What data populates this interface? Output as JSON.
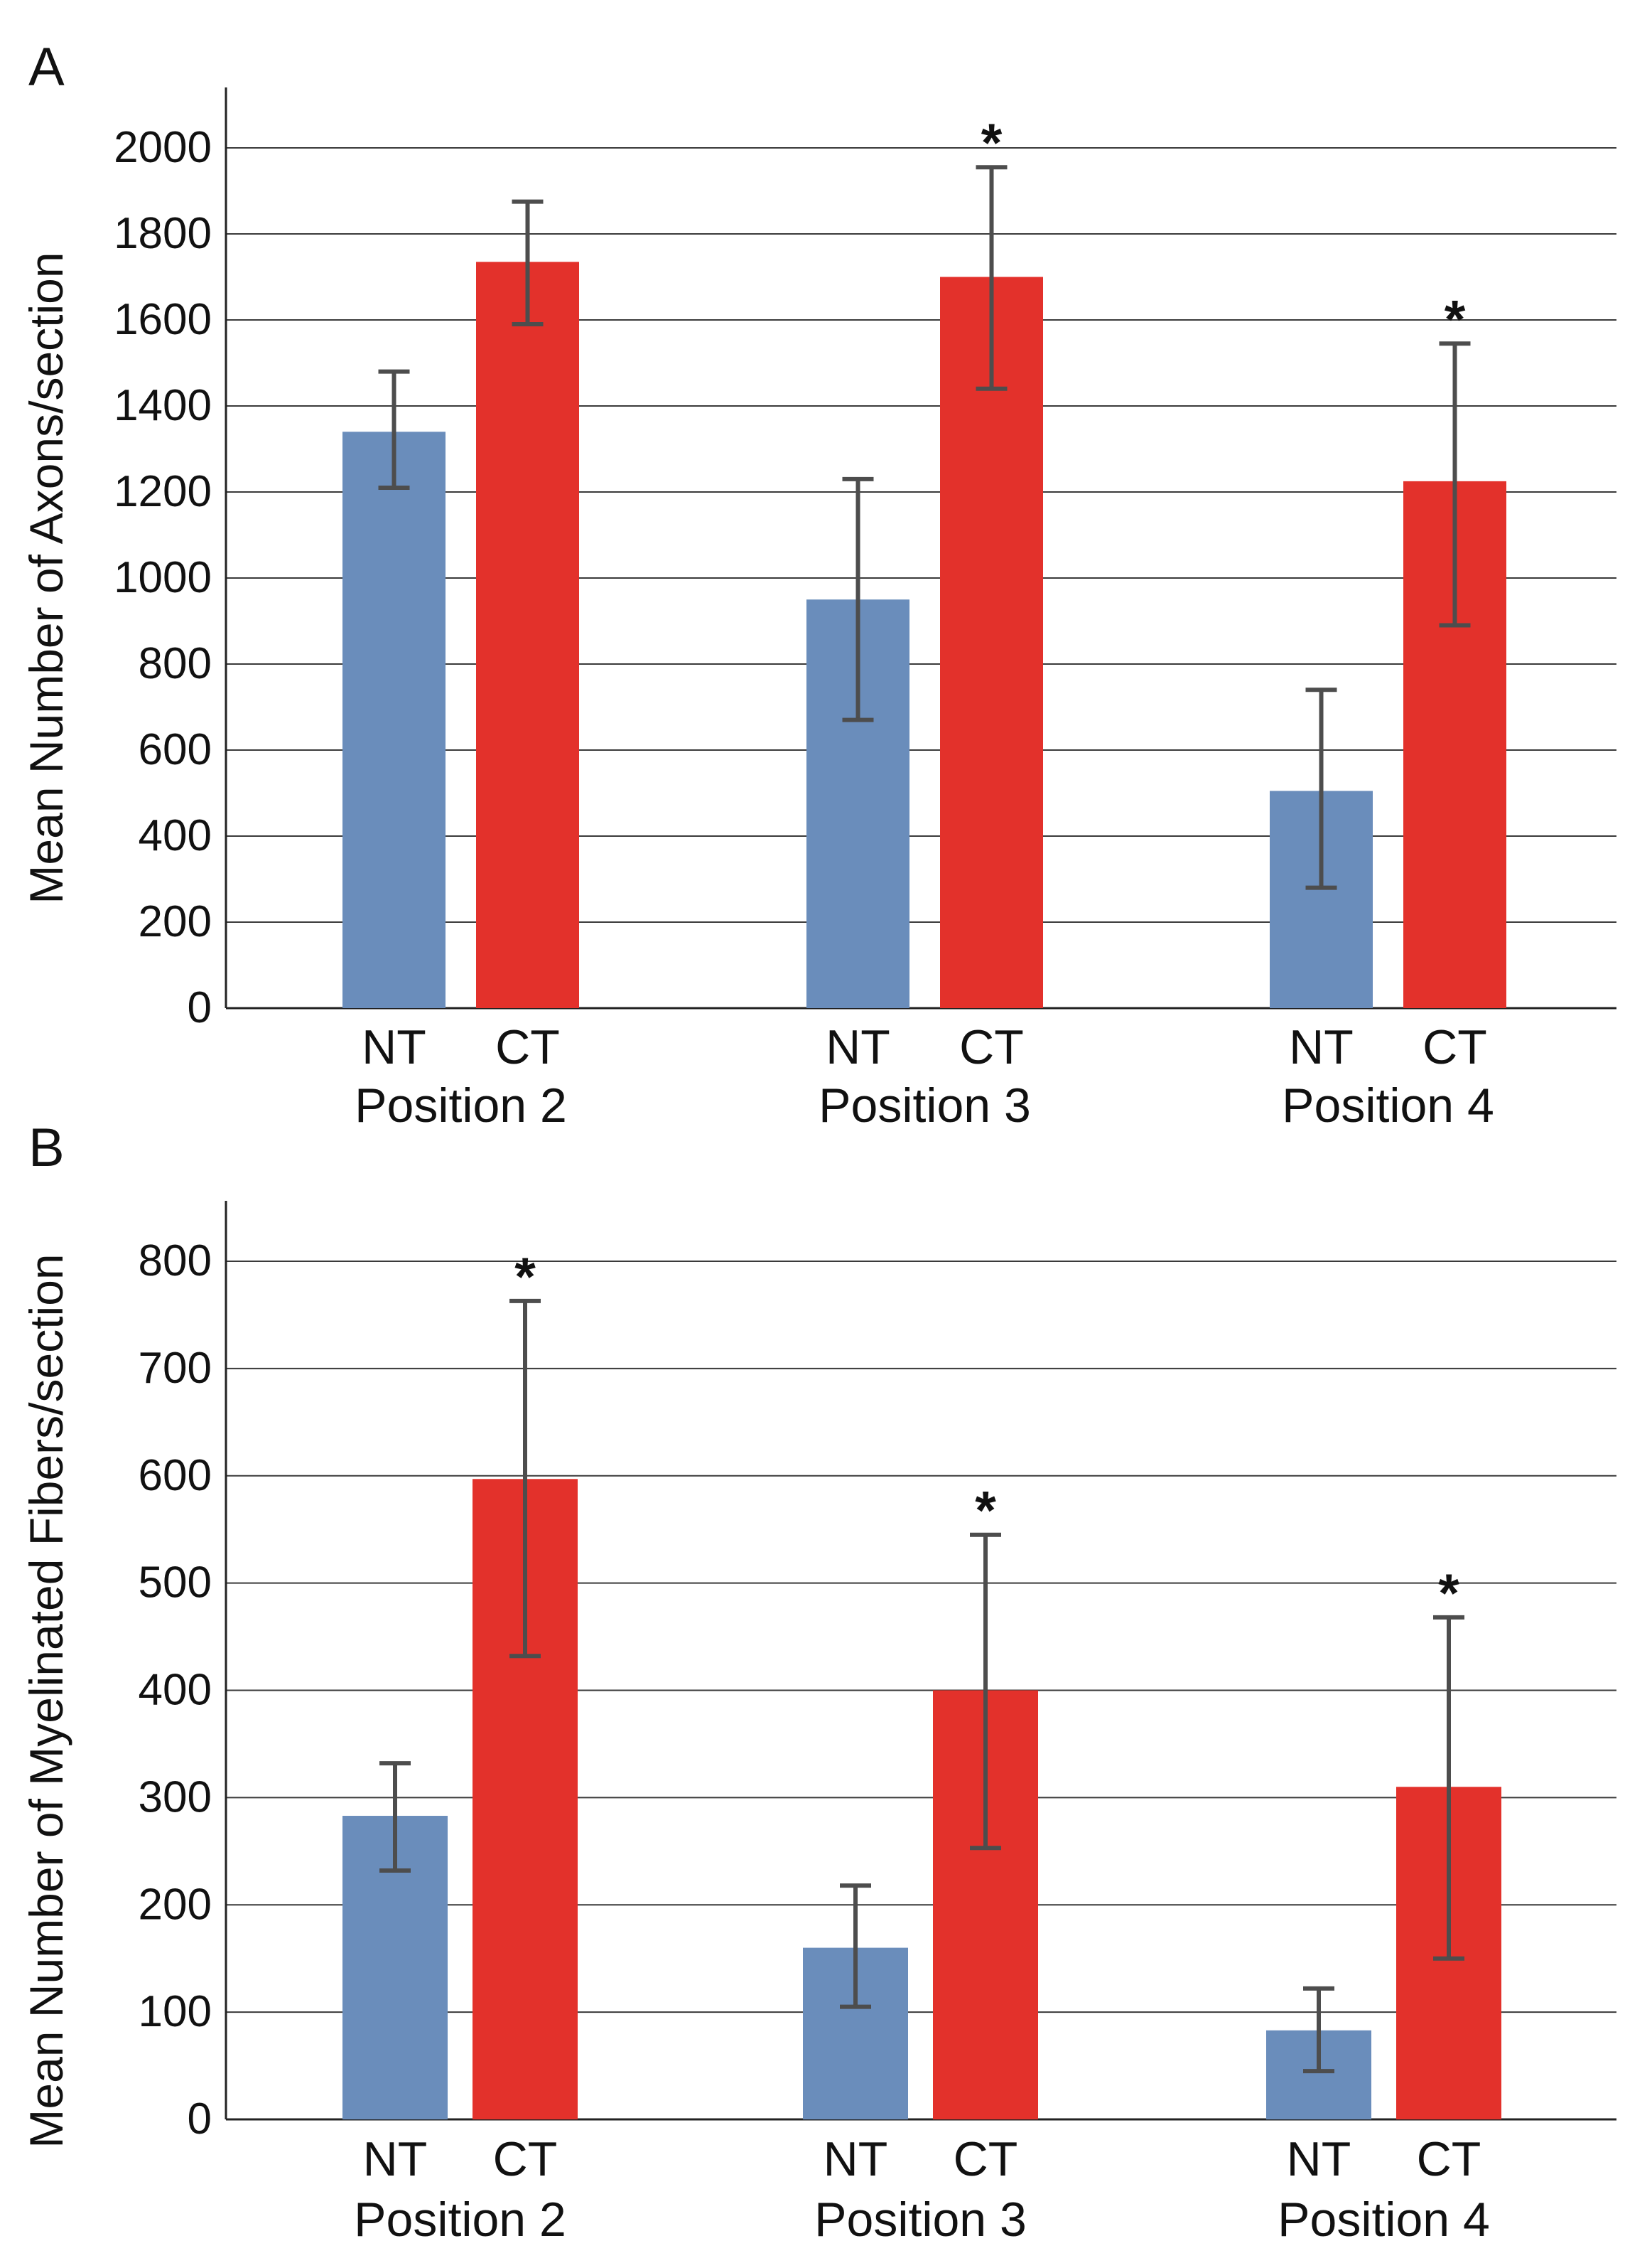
{
  "chart_data": [
    {
      "type": "bar",
      "panel_label": "A",
      "title": "",
      "xlabel": "",
      "ylabel": "Mean Number of Axons/section",
      "ylim": [
        0,
        2000
      ],
      "yticks": [
        "0",
        "200",
        "400",
        "600",
        "800",
        "1000",
        "1200",
        "1400",
        "1600",
        "1800",
        "2000"
      ],
      "grid": true,
      "groups": [
        {
          "label": "Position 2",
          "bars": [
            {
              "label": "NT",
              "value": 1340,
              "error_low": 1210,
              "error_high": 1480,
              "significant": false
            },
            {
              "label": "CT",
              "value": 1735,
              "error_low": 1590,
              "error_high": 1875,
              "significant": false
            }
          ]
        },
        {
          "label": "Position 3",
          "bars": [
            {
              "label": "NT",
              "value": 950,
              "error_low": 670,
              "error_high": 1230,
              "significant": false
            },
            {
              "label": "CT",
              "value": 1700,
              "error_low": 1440,
              "error_high": 1955,
              "significant": true
            }
          ]
        },
        {
          "label": "Position 4",
          "bars": [
            {
              "label": "NT",
              "value": 505,
              "error_low": 280,
              "error_high": 740,
              "significant": false
            },
            {
              "label": "CT",
              "value": 1225,
              "error_low": 890,
              "error_high": 1545,
              "significant": true
            }
          ]
        }
      ]
    },
    {
      "type": "bar",
      "panel_label": "B",
      "title": "",
      "xlabel": "",
      "ylabel": "Mean Number of Myelinated Fibers/section",
      "ylim": [
        0,
        800
      ],
      "yticks": [
        "0",
        "100",
        "200",
        "300",
        "400",
        "500",
        "600",
        "700",
        "800"
      ],
      "grid": true,
      "groups": [
        {
          "label": "Position 2",
          "bars": [
            {
              "label": "NT",
              "value": 283,
              "error_low": 232,
              "error_high": 332,
              "significant": false
            },
            {
              "label": "CT",
              "value": 597,
              "error_low": 432,
              "error_high": 763,
              "significant": true
            }
          ]
        },
        {
          "label": "Position 3",
          "bars": [
            {
              "label": "NT",
              "value": 160,
              "error_low": 105,
              "error_high": 218,
              "significant": false
            },
            {
              "label": "CT",
              "value": 400,
              "error_low": 253,
              "error_high": 545,
              "significant": true
            }
          ]
        },
        {
          "label": "Position 4",
          "bars": [
            {
              "label": "NT",
              "value": 83,
              "error_low": 45,
              "error_high": 122,
              "significant": false
            },
            {
              "label": "CT",
              "value": 310,
              "error_low": 150,
              "error_high": 468,
              "significant": true
            }
          ]
        }
      ]
    }
  ],
  "significance_marker": "*",
  "colors": {
    "NT": "#6a8dbb",
    "CT": "#e3312b",
    "error_bar": "#4d4d4d",
    "grid": "#3a3a3a",
    "axis": "#222222"
  }
}
